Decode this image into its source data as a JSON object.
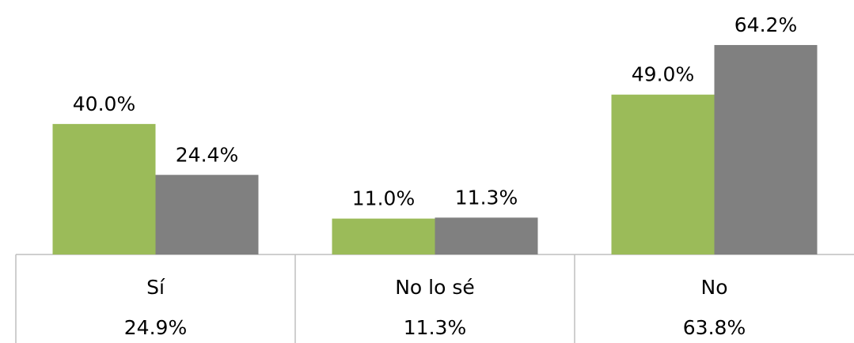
{
  "chart_data": {
    "type": "bar",
    "categories": [
      "Sí",
      "No lo sé",
      "No"
    ],
    "series": [
      {
        "color": "#9bbb59",
        "values": [
          40.0,
          11.0,
          49.0
        ],
        "value_labels": [
          "40.0%",
          "11.0%",
          "49.0%"
        ]
      },
      {
        "color": "#808080",
        "values": [
          24.4,
          11.3,
          64.2
        ],
        "value_labels": [
          "24.4%",
          "11.3%",
          "64.2%"
        ]
      }
    ],
    "table_values": [
      24.9,
      11.3,
      63.8
    ],
    "table_value_labels": [
      "24.9%",
      "11.3%",
      "63.8%"
    ],
    "ylim": [
      0,
      78
    ]
  }
}
